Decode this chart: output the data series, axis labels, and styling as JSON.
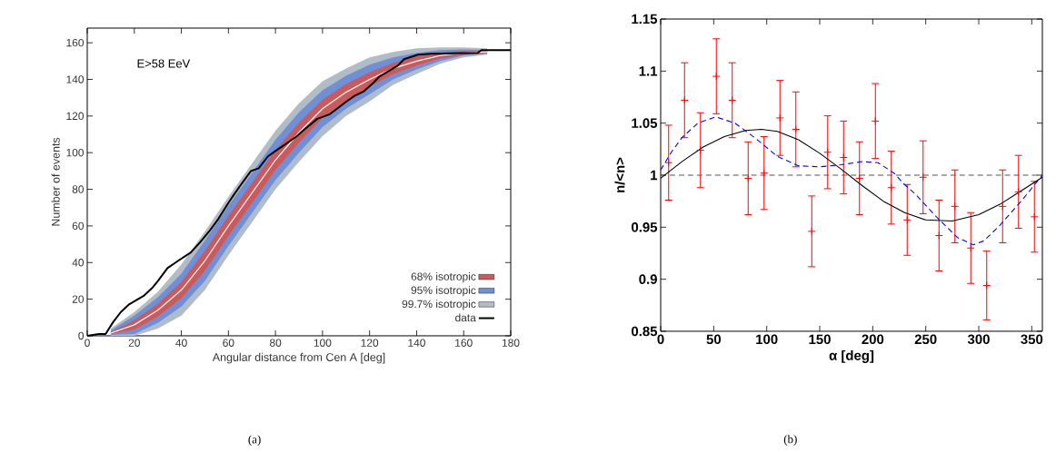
{
  "chart_data": [
    {
      "type": "line",
      "xlabel": "Angular distance from Cen A [deg]",
      "ylabel": "Number of events",
      "annotations": [
        "E>58 EeV",
        "(a)"
      ],
      "xlim": [
        0,
        180
      ],
      "xticks": [
        0,
        20,
        40,
        60,
        80,
        100,
        120,
        140,
        160,
        180
      ],
      "ylim": [
        0,
        168
      ],
      "yticks": [
        0,
        20,
        40,
        60,
        80,
        100,
        120,
        140,
        160
      ],
      "legend": "bottom right",
      "series": [
        {
          "color": "#ffffff",
          "x": [
            10,
            20,
            30,
            40,
            50,
            60,
            70,
            80,
            90,
            100,
            110,
            120,
            130,
            140,
            150,
            160,
            170
          ],
          "values": [
            1.5,
            6,
            14,
            25,
            41,
            60,
            78,
            96,
            111,
            124,
            133,
            140,
            146,
            150,
            153,
            154.5,
            155
          ]
        },
        {
          "name": "68% isotropic",
          "color": "#cc5a5a",
          "x": [
            10,
            20,
            30,
            40,
            50,
            60,
            70,
            80,
            90,
            100,
            110,
            120,
            130,
            140,
            150,
            160,
            170
          ],
          "values": [
            null,
            null,
            null,
            null,
            null,
            null,
            null,
            null,
            null,
            null,
            null,
            null,
            null,
            null,
            null,
            null,
            null
          ],
          "upper": [
            2,
            8.5,
            17.5,
            29.5,
            46.5,
            65.5,
            83.5,
            101.5,
            116.5,
            129,
            137.5,
            144,
            149,
            152.5,
            154.5,
            155.5,
            155.5
          ],
          "lower": [
            1,
            3.5,
            10.5,
            20.5,
            35.5,
            54.5,
            72.5,
            90.5,
            105.5,
            119,
            128.5,
            136,
            143,
            147.5,
            151.5,
            153.5,
            154.5
          ]
        },
        {
          "name": "95% isotropic",
          "color": "#6f8fd6",
          "x": [
            10,
            20,
            30,
            40,
            50,
            60,
            70,
            80,
            90,
            100,
            110,
            120,
            130,
            140,
            150,
            160,
            170
          ],
          "values": [
            null,
            null,
            null,
            null,
            null,
            null,
            null,
            null,
            null,
            null,
            null,
            null,
            null,
            null,
            null,
            null,
            null
          ],
          "upper": [
            3,
            11,
            21,
            34,
            52,
            71,
            89,
            107,
            122,
            134,
            142,
            148,
            152,
            154.5,
            156,
            156.3,
            156
          ],
          "lower": [
            0.5,
            1,
            7,
            16,
            30,
            49,
            67,
            85,
            100,
            114,
            124,
            132,
            140,
            145.5,
            150,
            153,
            154
          ]
        },
        {
          "name": "99.7% isotropic",
          "color": "#b0bcc8",
          "x": [
            10,
            20,
            30,
            40,
            50,
            60,
            70,
            80,
            90,
            100,
            110,
            120,
            130,
            140,
            150,
            160,
            170
          ],
          "values": [
            null,
            null,
            null,
            null,
            null,
            null,
            null,
            null,
            null,
            null,
            null,
            null,
            null,
            null,
            null,
            null,
            null
          ],
          "upper": [
            4,
            13,
            24,
            39,
            57,
            76,
            94,
            112,
            127,
            139,
            146,
            152,
            155,
            157,
            157.5,
            157.5,
            157
          ],
          "lower": [
            0,
            0,
            4,
            11,
            25,
            44,
            62,
            80,
            95,
            109,
            120,
            128,
            137,
            143,
            148.5,
            152,
            153.5
          ]
        },
        {
          "name": "data",
          "color": "#000000",
          "x": [
            0,
            5,
            7.8,
            11,
            14.3,
            17.6,
            24.2,
            27.5,
            30.1,
            34.1,
            38.7,
            44,
            47.9,
            51.8,
            55.8,
            59.7,
            62.3,
            65.6,
            69.6,
            72.9,
            76.8,
            80.1,
            84.7,
            88.6,
            92.6,
            97.8,
            103.1,
            109.7,
            113.6,
            117.6,
            121.5,
            124.1,
            132,
            134.6,
            140.6,
            146,
            166,
            167.5,
            180
          ],
          "values": [
            0,
            1,
            1,
            7.5,
            13,
            17,
            22,
            26,
            30,
            37,
            41,
            45.5,
            51,
            57,
            64,
            72,
            77,
            83,
            90,
            91.5,
            98,
            101,
            105,
            108.5,
            113,
            118.5,
            121,
            127.5,
            131,
            133.5,
            138,
            141.5,
            147.5,
            151,
            153.5,
            154,
            154.5,
            156,
            156
          ]
        }
      ]
    },
    {
      "type": "scatter",
      "xlabel": "α [deg]",
      "ylabel": "n/<n>",
      "annotations": [
        "(b)"
      ],
      "xlim": [
        0,
        360
      ],
      "xticks": [
        0,
        50,
        100,
        150,
        200,
        250,
        300,
        350
      ],
      "ylim": [
        0.85,
        1.15
      ],
      "yticks": [
        0.85,
        0.9,
        0.95,
        1,
        1.05,
        1.1,
        1.15
      ],
      "ref_lines": [
        {
          "axis": "y",
          "value": 1,
          "color": "#555555",
          "line_style": "dashed"
        }
      ],
      "series": [
        {
          "color": "#ff0000",
          "marker": "cross",
          "x": [
            7.5,
            22.5,
            37.5,
            52.5,
            67.5,
            82.5,
            97.5,
            112.5,
            127.5,
            142.5,
            157.5,
            172.5,
            187.5,
            202.5,
            217.5,
            232.5,
            247.5,
            262.5,
            277.5,
            292.5,
            307.5,
            322.5,
            337.5,
            352.5
          ],
          "values": [
            1.012,
            1.072,
            1.024,
            1.095,
            1.072,
            0.997,
            1.002,
            1.055,
            1.044,
            0.946,
            1.022,
            1.017,
            0.997,
            1.052,
            0.988,
            0.957,
            0.998,
            0.942,
            0.97,
            0.93,
            0.894,
            0.97,
            0.984,
            0.96
          ],
          "errors": [
            0.036,
            0.036,
            0.036,
            0.036,
            0.036,
            0.035,
            0.035,
            0.036,
            0.036,
            0.034,
            0.035,
            0.035,
            0.035,
            0.036,
            0.035,
            0.034,
            0.035,
            0.034,
            0.035,
            0.034,
            0.033,
            0.035,
            0.035,
            0.034
          ]
        },
        {
          "type": "line",
          "color": "#000000",
          "line_style": "solid",
          "x": [
            0,
            20,
            40,
            60,
            80,
            95,
            110,
            130,
            150,
            170,
            190,
            210,
            230,
            250,
            275,
            300,
            320,
            340,
            360
          ],
          "values": [
            0.997,
            1.013,
            1.027,
            1.037,
            1.043,
            1.044,
            1.042,
            1.034,
            1.021,
            1.006,
            0.99,
            0.975,
            0.964,
            0.957,
            0.956,
            0.962,
            0.972,
            0.985,
            0.998
          ]
        },
        {
          "type": "line",
          "color": "#0000ff",
          "line_style": "dashed",
          "x": [
            0,
            10,
            20,
            35,
            52,
            70,
            90,
            110,
            130,
            150,
            170,
            190,
            205,
            220,
            230,
            240,
            260,
            280,
            295,
            305,
            320,
            340,
            360
          ],
          "values": [
            1.005,
            1.022,
            1.036,
            1.05,
            1.056,
            1.05,
            1.035,
            1.018,
            1.009,
            1.008,
            1.01,
            1.013,
            1.012,
            1.002,
            0.991,
            0.982,
            0.96,
            0.94,
            0.933,
            0.937,
            0.952,
            0.975,
            1.0
          ]
        }
      ]
    }
  ]
}
